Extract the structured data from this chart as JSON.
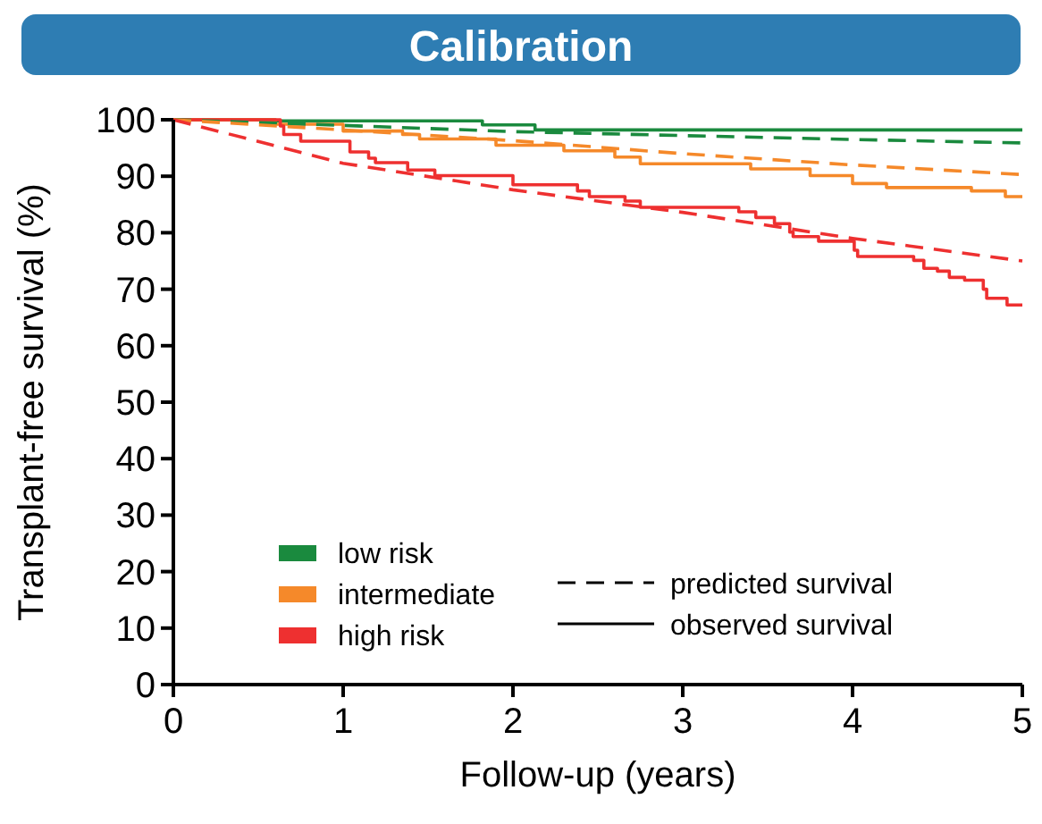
{
  "chart_data": {
    "type": "line",
    "title": "Calibration",
    "xlabel": "Follow-up (years)",
    "ylabel": "Transplant-free survival (%)",
    "xlim": [
      0,
      5
    ],
    "xticks": [
      0,
      1,
      2,
      3,
      4,
      5
    ],
    "ylim": [
      0,
      100
    ],
    "yticks": [
      0,
      10,
      20,
      30,
      40,
      50,
      60,
      70,
      80,
      90,
      100
    ],
    "grid": false,
    "legend": "bottom",
    "marker": "none",
    "series": [
      {
        "name": "low risk",
        "type": "step",
        "color": "#1a8a3e",
        "line_style": "solid",
        "x": [
          0,
          0.6,
          1.82,
          2.13,
          5
        ],
        "values": [
          100,
          99.8,
          99.1,
          98.2,
          98.2
        ]
      },
      {
        "name": "intermediate",
        "type": "step",
        "color": "#f5892a",
        "line_style": "solid",
        "x": [
          0,
          0.6,
          1.0,
          1.35,
          1.45,
          1.9,
          2.3,
          2.6,
          2.75,
          3.4,
          3.75,
          4.0,
          4.2,
          4.7,
          4.9,
          5
        ],
        "values": [
          100,
          99.2,
          98,
          97.4,
          96.6,
          95.5,
          94.5,
          93.4,
          92.2,
          91.3,
          90.1,
          88.7,
          88,
          87.4,
          86.4,
          86.4
        ]
      },
      {
        "name": "high risk",
        "type": "step",
        "color": "#ee3030",
        "line_style": "solid",
        "x": [
          0,
          0.63,
          0.65,
          0.75,
          1.04,
          1.15,
          1.19,
          1.38,
          1.54,
          2.0,
          2.38,
          2.45,
          2.66,
          2.75,
          3.33,
          3.43,
          3.54,
          3.63,
          3.65,
          3.8,
          4.01,
          4.03,
          4.36,
          4.42,
          4.5,
          4.57,
          4.66,
          4.77,
          4.79,
          4.91,
          5
        ],
        "values": [
          100,
          98.9,
          97.4,
          96.2,
          94.3,
          93.2,
          92.4,
          91.1,
          90.1,
          88.5,
          87.4,
          86.4,
          85.6,
          84.5,
          83.7,
          82.7,
          81.6,
          80.1,
          79.3,
          78.5,
          76.9,
          75.8,
          75.1,
          73.7,
          73.2,
          72.1,
          71.6,
          70,
          68.4,
          67.2,
          67.2
        ]
      },
      {
        "type": "line",
        "color": "#1a8a3e",
        "line_style": "dashed",
        "x": [
          0,
          1,
          2,
          3,
          4,
          5
        ],
        "values": [
          100,
          99,
          97.9,
          97.2,
          96.5,
          95.9
        ]
      },
      {
        "type": "line",
        "color": "#f5892a",
        "line_style": "dashed",
        "x": [
          0,
          1,
          2,
          3,
          4,
          5
        ],
        "values": [
          100,
          98.2,
          96.3,
          94,
          92,
          90.3
        ]
      },
      {
        "type": "line",
        "color": "#ee3030",
        "line_style": "dashed",
        "x": [
          0,
          1,
          2,
          3,
          4,
          5
        ],
        "values": [
          100,
          92.3,
          87.6,
          83.6,
          79,
          75
        ]
      }
    ],
    "annotations": [
      "predicted survival",
      "observed survival"
    ]
  }
}
